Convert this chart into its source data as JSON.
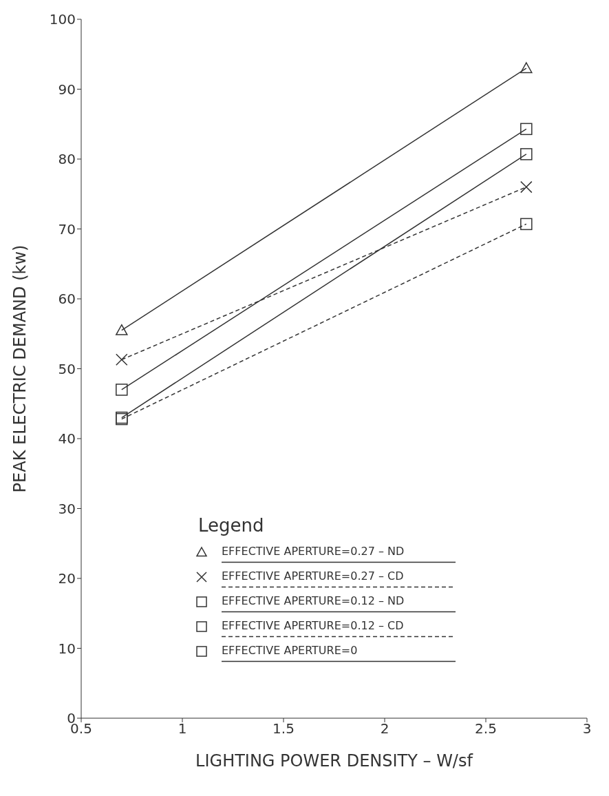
{
  "chart_data": {
    "type": "line",
    "xlabel": "LIGHTING POWER DENSITY – W/sf",
    "ylabel": "PEAK ELECTRIC DEMAND (kw)",
    "legend_title": "Legend",
    "x": [
      0.7,
      2.7
    ],
    "xlim": [
      0.5,
      3
    ],
    "xticks": [
      0.5,
      1,
      1.5,
      2,
      2.5,
      3
    ],
    "ylim": [
      0,
      100
    ],
    "yticks": [
      0,
      10,
      20,
      30,
      40,
      50,
      60,
      70,
      80,
      90,
      100
    ],
    "grid": false,
    "legend": "bottom",
    "series": [
      {
        "name": "EFFECTIVE APERTURE=0.27 – ND",
        "color": "#333333",
        "values": [
          55.5,
          93
        ],
        "marker": "triangle",
        "line_style": "solid"
      },
      {
        "name": "EFFECTIVE APERTURE=0.27 – CD",
        "color": "#333333",
        "values": [
          51.3,
          76
        ],
        "marker": "cross",
        "line_style": "dashed"
      },
      {
        "name": "EFFECTIVE APERTURE=0.12 – ND",
        "color": "#333333",
        "values": [
          47,
          84.3
        ],
        "marker": "square",
        "line_style": "solid"
      },
      {
        "name": "EFFECTIVE APERTURE=0.12 – CD",
        "color": "#333333",
        "values": [
          42.8,
          70.7
        ],
        "marker": "square",
        "line_style": "dashed"
      },
      {
        "name": "EFFECTIVE APERTURE=0",
        "color": "#333333",
        "values": [
          43,
          80.7
        ],
        "marker": "square",
        "line_style": "solid"
      }
    ]
  }
}
